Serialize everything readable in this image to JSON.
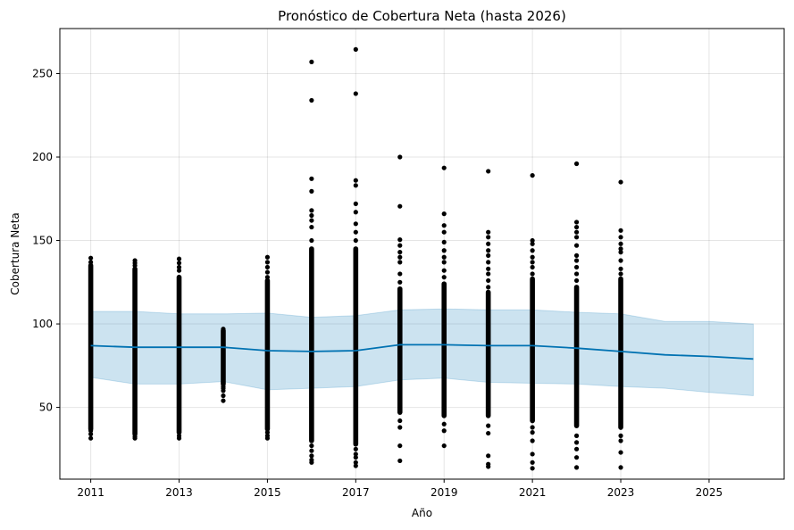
{
  "chart_data": {
    "type": "scatter",
    "title": "Pronóstico de Cobertura Neta (hasta 2026)",
    "xlabel": "Año",
    "ylabel": "Cobertura Neta",
    "xlim": [
      2010.3,
      2026.7
    ],
    "ylim": [
      7,
      277
    ],
    "x_ticks": [
      "2011",
      "2013",
      "2015",
      "2017",
      "2019",
      "2021",
      "2023",
      "2025"
    ],
    "y_ticks": [
      "50",
      "100",
      "150",
      "200",
      "250"
    ],
    "grid": true,
    "colors": {
      "points": "#000000",
      "forecast_line": "#0072B2",
      "uncertainty_band": "#0072B2"
    },
    "forecast": {
      "x": [
        2011,
        2012,
        2013,
        2014,
        2015,
        2016,
        2017,
        2018,
        2019,
        2020,
        2021,
        2022,
        2023,
        2024,
        2025,
        2026
      ],
      "yhat": [
        87,
        86,
        86,
        86,
        84,
        83.5,
        84,
        87.5,
        87.5,
        87,
        87,
        85.5,
        83.5,
        81.5,
        80.5,
        79
      ],
      "yhat_lower": [
        68,
        64,
        64,
        65.5,
        60.5,
        61.5,
        62.5,
        66.5,
        67.5,
        65,
        64.5,
        64,
        62.5,
        61.5,
        59,
        57
      ],
      "yhat_upper": [
        107.5,
        107.5,
        106,
        106,
        106.5,
        104,
        105,
        108.5,
        109,
        108.5,
        108.5,
        107,
        106,
        101.5,
        101.5,
        100
      ]
    },
    "observations": [
      {
        "x": 2011,
        "core": [
          37,
          135
        ],
        "extremes": [
          31.5,
          34,
          36,
          137,
          139.5
        ]
      },
      {
        "x": 2012,
        "core": [
          34,
          133
        ],
        "extremes": [
          31.5,
          32.5,
          135,
          136.5,
          138
        ]
      },
      {
        "x": 2013,
        "core": [
          35,
          128
        ],
        "extremes": [
          31.5,
          33,
          132,
          134,
          136.5,
          139
        ]
      },
      {
        "x": 2014,
        "core": [
          64,
          96
        ],
        "extremes": [
          54,
          57,
          60,
          61.5,
          62.5,
          97
        ]
      },
      {
        "x": 2015,
        "core": [
          37,
          126
        ],
        "extremes": [
          31.5,
          33,
          35,
          128,
          131,
          134,
          137,
          140
        ]
      },
      {
        "x": 2016,
        "core": [
          30,
          145
        ],
        "extremes": [
          17,
          18.5,
          21,
          24,
          27,
          150,
          158,
          162,
          165,
          168,
          179.5,
          187,
          234,
          257
        ]
      },
      {
        "x": 2017,
        "core": [
          28,
          145
        ],
        "extremes": [
          15,
          17,
          20,
          22,
          25,
          150,
          155,
          160,
          167,
          172,
          183,
          186,
          238,
          264.5
        ]
      },
      {
        "x": 2018,
        "core": [
          47,
          121
        ],
        "extremes": [
          18,
          27,
          38,
          42,
          125,
          130,
          137,
          140,
          143,
          147,
          150.5,
          170.5,
          200
        ]
      },
      {
        "x": 2019,
        "core": [
          45,
          124
        ],
        "extremes": [
          27,
          36,
          40,
          128,
          132,
          137,
          140,
          144,
          149,
          155,
          159,
          166,
          193.5
        ]
      },
      {
        "x": 2020,
        "core": [
          45,
          119
        ],
        "extremes": [
          14.5,
          16,
          21,
          34.5,
          39,
          122,
          126,
          130,
          133,
          137,
          141,
          144,
          148,
          152,
          155,
          191.5
        ]
      },
      {
        "x": 2021,
        "core": [
          42,
          127
        ],
        "extremes": [
          13.5,
          17,
          22,
          30,
          35,
          38,
          130,
          134,
          137,
          140,
          144,
          148,
          150,
          189
        ]
      },
      {
        "x": 2022,
        "core": [
          39,
          122
        ],
        "extremes": [
          14,
          20,
          25,
          29,
          33,
          126,
          130,
          134,
          138,
          141,
          147,
          152,
          155,
          158,
          161,
          196
        ]
      },
      {
        "x": 2023,
        "core": [
          38,
          127
        ],
        "extremes": [
          14,
          23,
          30,
          33,
          130,
          133,
          138,
          143,
          145,
          148,
          152,
          156,
          185
        ]
      }
    ]
  }
}
